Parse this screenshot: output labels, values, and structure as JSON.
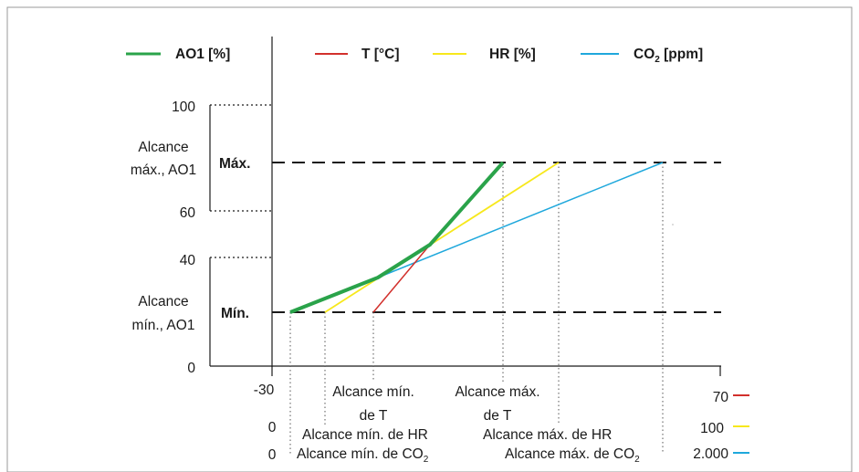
{
  "legend": [
    {
      "label": "AO1 [%]",
      "color": "#2aa34a"
    },
    {
      "label": "T [°C]",
      "color": "#d2302c"
    },
    {
      "label": "HR [%]",
      "color": "#f7e81c"
    },
    {
      "label": "CO",
      "sub": "2",
      "unit": " [ppm]",
      "color": "#1fa8dc"
    }
  ],
  "y_axis": {
    "ticks": [
      "100",
      "60",
      "40",
      "0"
    ],
    "ranges": [
      {
        "line1": "Alcance",
        "line2": "máx., AO1",
        "level": "Máx."
      },
      {
        "line1": "Alcance",
        "line2": "mín., AO1",
        "level": "Mín."
      }
    ]
  },
  "x_axis": {
    "min_T": "-30",
    "max_T": "70",
    "min_HR": "0",
    "max_HR": "100",
    "min_CO2": "0",
    "max_CO2": "2.000"
  },
  "annotations": {
    "t_min_1": "Alcance mín.",
    "t_min_2": "de T",
    "t_max_1": "Alcance máx.",
    "t_max_2": "de T",
    "hr_min": "Alcance mín. de HR",
    "hr_max": "Alcance máx. de HR",
    "co2_min": "Alcance mín. de CO",
    "co2_max": "Alcance máx. de CO",
    "co2_sub": "2"
  }
}
